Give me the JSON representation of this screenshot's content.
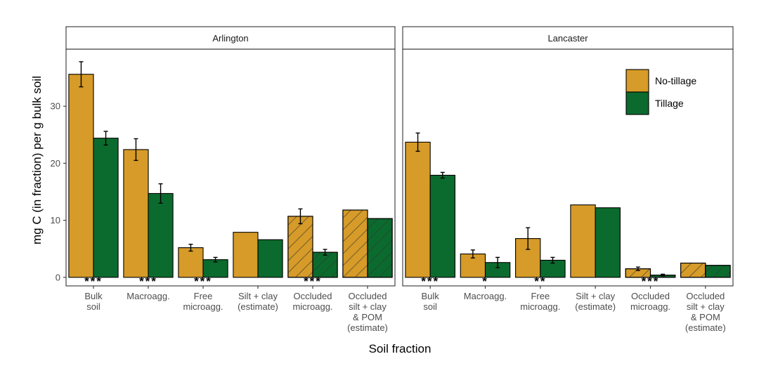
{
  "chart_data": {
    "type": "bar",
    "xlabel": "Soil fraction",
    "ylabel": "mg C (in fraction) per g bulk soil",
    "ylim": [
      -1.5,
      40
    ],
    "yticks": [
      0,
      10,
      20,
      30
    ],
    "categories": [
      [
        "Bulk",
        "soil"
      ],
      [
        "Macroagg."
      ],
      [
        "Free",
        "microagg."
      ],
      [
        "Silt + clay",
        "(estimate)"
      ],
      [
        "Occluded",
        "microagg."
      ],
      [
        "Occluded",
        "silt + clay",
        "& POM",
        "(estimate)"
      ]
    ],
    "hatched_categories": [
      4,
      5
    ],
    "legend": {
      "position": "top-right",
      "items": [
        {
          "label": "No-tillage",
          "color": "#D69B28"
        },
        {
          "label": "Tillage",
          "color": "#0B6B2E"
        }
      ]
    },
    "panels": [
      {
        "title": "Arlington",
        "series": [
          {
            "name": "No-tillage",
            "values": [
              35.6,
              22.4,
              5.2,
              7.9,
              10.7,
              11.8
            ],
            "errors": [
              2.2,
              1.9,
              0.6,
              null,
              1.3,
              null
            ]
          },
          {
            "name": "Tillage",
            "values": [
              24.4,
              14.7,
              3.1,
              6.6,
              4.4,
              10.3
            ],
            "errors": [
              1.2,
              1.7,
              0.4,
              null,
              0.5,
              null
            ]
          }
        ],
        "significance": [
          "***",
          "***",
          "***",
          "",
          "***",
          ""
        ]
      },
      {
        "title": "Lancaster",
        "series": [
          {
            "name": "No-tillage",
            "values": [
              23.7,
              4.1,
              6.8,
              12.7,
              1.5,
              2.5
            ],
            "errors": [
              1.6,
              0.7,
              1.9,
              null,
              0.3,
              null
            ]
          },
          {
            "name": "Tillage",
            "values": [
              17.9,
              2.6,
              3.0,
              12.2,
              0.4,
              2.1
            ],
            "errors": [
              0.5,
              0.9,
              0.5,
              null,
              0.15,
              null
            ]
          }
        ],
        "significance": [
          "***",
          "*",
          "**",
          "",
          "***",
          ""
        ]
      }
    ]
  }
}
